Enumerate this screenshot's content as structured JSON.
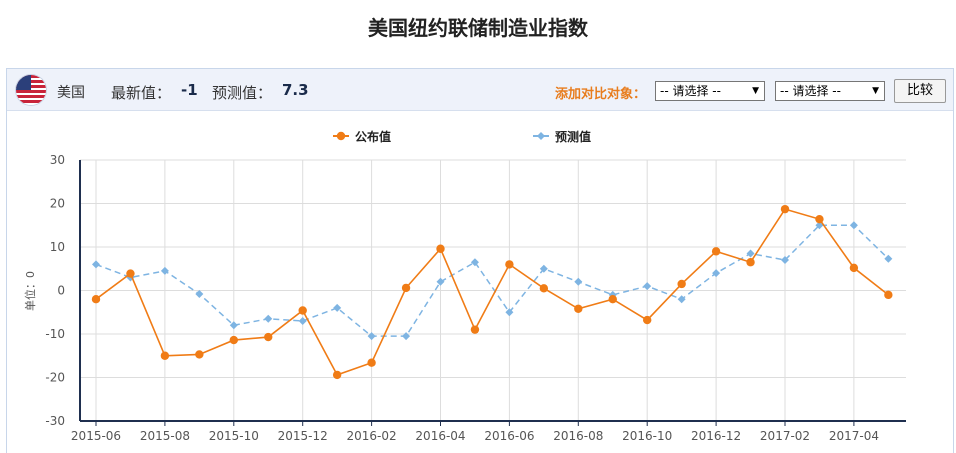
{
  "page": {
    "title": "美国纽约联储制造业指数"
  },
  "header": {
    "country": "美国",
    "latest_label": "最新值：",
    "latest_value": "-1",
    "forecast_label": "预测值：",
    "forecast_value": "7.3",
    "compare_label": "添加对比对象：",
    "select1": "-- 请选择 --",
    "select2": "-- 请选择 --",
    "compare_button": "比较"
  },
  "chart_data": {
    "type": "line",
    "title": "",
    "ylabel": "单位：0",
    "xlabel": "",
    "ylim": [
      -30,
      30
    ],
    "yticks": [
      30,
      20,
      10,
      0,
      -10,
      -20,
      -30
    ],
    "grid": true,
    "legend_position": "top-center",
    "x": [
      "2015-06",
      "2015-07",
      "2015-08",
      "2015-09",
      "2015-10",
      "2015-11",
      "2015-12",
      "2016-01",
      "2016-02",
      "2016-03",
      "2016-04",
      "2016-05",
      "2016-06",
      "2016-07",
      "2016-08",
      "2016-09",
      "2016-10",
      "2016-11",
      "2016-12",
      "2017-01",
      "2017-02",
      "2017-03",
      "2017-04",
      "2017-05"
    ],
    "xtick_labels": [
      "2015-06",
      "2015-08",
      "2015-10",
      "2015-12",
      "2016-02",
      "2016-04",
      "2016-06",
      "2016-08",
      "2016-10",
      "2016-12",
      "2017-02",
      "2017-04"
    ],
    "series": [
      {
        "name": "公布值",
        "color": "#f07c16",
        "style": "solid",
        "marker": "circle",
        "values": [
          -2,
          3.9,
          -15,
          -14.7,
          -11.4,
          -10.7,
          -4.6,
          -19.4,
          -16.6,
          0.6,
          9.6,
          -9.0,
          6.0,
          0.5,
          -4.2,
          -2.0,
          -6.8,
          1.5,
          9.0,
          6.5,
          18.7,
          16.4,
          5.2,
          -1
        ]
      },
      {
        "name": "预测值",
        "color": "#7eb4e2",
        "style": "dashed",
        "marker": "diamond",
        "values": [
          6.0,
          3.0,
          4.5,
          -0.8,
          -8.0,
          -6.5,
          -7.0,
          -4.0,
          -10.5,
          -10.5,
          2.0,
          6.5,
          -5.0,
          5.0,
          2.0,
          -1.0,
          1.0,
          -2.0,
          4.0,
          8.5,
          7.0,
          15.0,
          15.0,
          7.3
        ]
      }
    ]
  },
  "colors": {
    "accent": "#e87d1e",
    "axis": "#1f2f4f",
    "grid": "#dddddd"
  },
  "icons": {
    "flag": "us-flag-icon"
  }
}
